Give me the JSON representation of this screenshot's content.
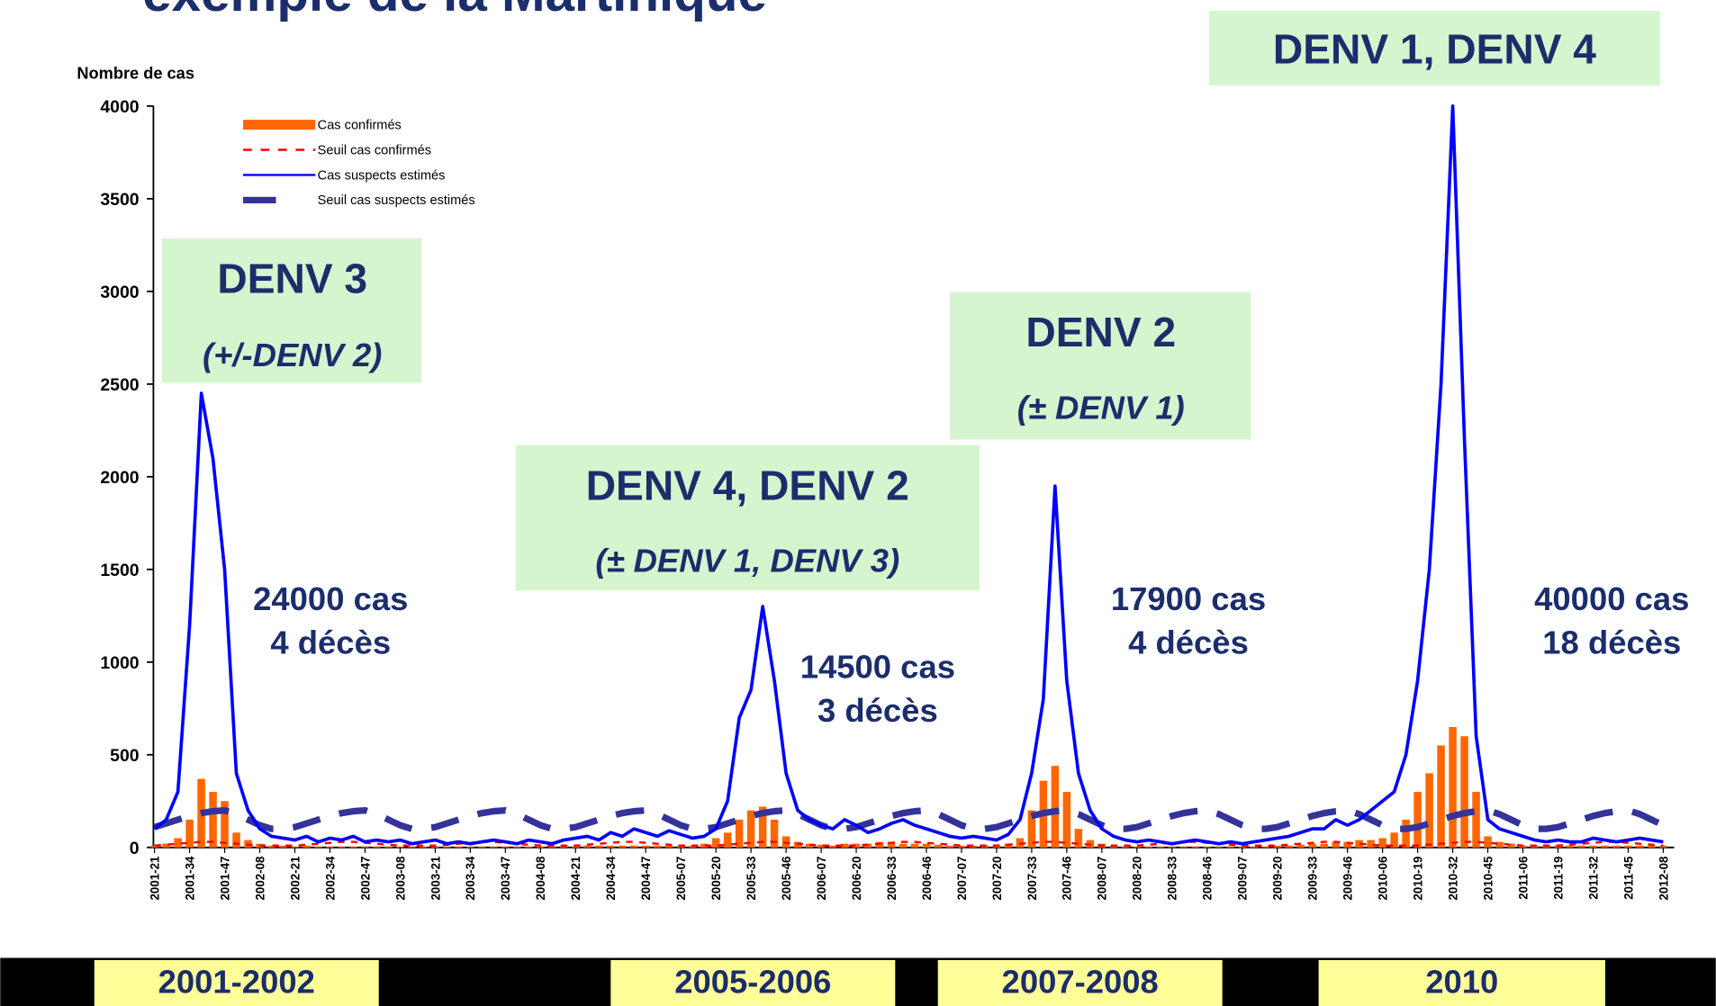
{
  "title": "exemple de la Martinique",
  "periods": [
    "2001-2002",
    "2005-2006",
    "2007-2008",
    "2010"
  ],
  "chart_data": {
    "type": "bar_line",
    "y_label": "Nombre de cas",
    "ylim": [
      0,
      4000
    ],
    "yticks": [
      0,
      500,
      1000,
      1500,
      2000,
      2500,
      3000,
      3500,
      4000
    ],
    "legend": "top-left",
    "categories": [
      "2001-21",
      null,
      null,
      "2001-34",
      null,
      null,
      "2001-47",
      null,
      null,
      "2002-08",
      null,
      null,
      "2002-21",
      null,
      null,
      "2002-34",
      null,
      null,
      "2002-47",
      null,
      null,
      "2003-08",
      null,
      null,
      "2003-21",
      null,
      null,
      "2003-34",
      null,
      null,
      "2003-47",
      null,
      null,
      "2004-08",
      null,
      null,
      "2004-21",
      null,
      null,
      "2004-34",
      null,
      null,
      "2004-47",
      null,
      null,
      "2005-07",
      null,
      null,
      "2005-20",
      null,
      null,
      "2005-33",
      null,
      null,
      "2005-46",
      null,
      null,
      "2006-07",
      null,
      null,
      "2006-20",
      null,
      null,
      "2006-33",
      null,
      null,
      "2006-46",
      null,
      null,
      "2007-07",
      null,
      null,
      "2007-20",
      null,
      null,
      "2007-33",
      null,
      null,
      "2007-46",
      null,
      null,
      "2008-07",
      null,
      null,
      "2008-20",
      null,
      null,
      "2008-33",
      null,
      null,
      "2008-46",
      null,
      null,
      "2009-07",
      null,
      null,
      "2009-20",
      null,
      null,
      "2009-33",
      null,
      null,
      "2009-46",
      null,
      null,
      "2010-06",
      null,
      null,
      "2010-19",
      null,
      null,
      "2010-32",
      null,
      null,
      "2010-45",
      null,
      null,
      "2011-06",
      null,
      null,
      "2011-19",
      null,
      null,
      "2011-32",
      null,
      null,
      "2011-45",
      null,
      null,
      "2012-08"
    ],
    "series": [
      {
        "name": "Cas confirmés",
        "kind": "bar",
        "color": "#ff6600",
        "values": [
          10,
          20,
          50,
          150,
          370,
          300,
          250,
          80,
          40,
          20,
          10,
          10,
          5,
          10,
          5,
          5,
          5,
          5,
          5,
          5,
          5,
          5,
          5,
          5,
          5,
          5,
          5,
          5,
          5,
          5,
          5,
          5,
          5,
          5,
          5,
          5,
          5,
          10,
          10,
          10,
          10,
          10,
          10,
          10,
          10,
          10,
          10,
          20,
          50,
          80,
          150,
          200,
          220,
          150,
          60,
          30,
          20,
          15,
          10,
          20,
          20,
          20,
          30,
          30,
          20,
          20,
          20,
          15,
          10,
          10,
          10,
          10,
          10,
          20,
          50,
          200,
          360,
          440,
          300,
          100,
          40,
          20,
          10,
          5,
          5,
          5,
          5,
          5,
          5,
          5,
          5,
          5,
          5,
          5,
          5,
          5,
          10,
          10,
          15,
          20,
          20,
          30,
          30,
          40,
          40,
          50,
          80,
          150,
          300,
          400,
          550,
          650,
          600,
          300,
          60,
          30,
          20,
          10,
          10,
          10,
          10,
          10,
          10,
          10,
          10,
          10,
          10,
          10,
          10,
          10
        ]
      },
      {
        "name": "Seuil cas confirmés",
        "kind": "line",
        "dash": true,
        "color": "#ff0000",
        "values": [
          10,
          15,
          20,
          25,
          30,
          30,
          25,
          20,
          15,
          10,
          10,
          10,
          10,
          15,
          20,
          25,
          30,
          30,
          25,
          20,
          15,
          10,
          10,
          10,
          10,
          15,
          20,
          25,
          30,
          30,
          25,
          20,
          15,
          10,
          10,
          10,
          10,
          15,
          20,
          25,
          30,
          30,
          25,
          20,
          15,
          10,
          10,
          10,
          10,
          15,
          20,
          25,
          30,
          30,
          25,
          20,
          15,
          10,
          10,
          10,
          10,
          15,
          20,
          25,
          30,
          30,
          25,
          20,
          15,
          10,
          10,
          10,
          10,
          15,
          20,
          25,
          30,
          30,
          25,
          20,
          15,
          10,
          10,
          10,
          10,
          15,
          20,
          25,
          30,
          30,
          25,
          20,
          15,
          10,
          10,
          10,
          10,
          15,
          20,
          25,
          30,
          30,
          25,
          20,
          15,
          10,
          10,
          10,
          10,
          15,
          20,
          25,
          30,
          30,
          25,
          20,
          15,
          10,
          10,
          10,
          10,
          15,
          20,
          25,
          30,
          30,
          25,
          20,
          15,
          10
        ]
      },
      {
        "name": "Cas suspects estimés",
        "kind": "line",
        "color": "#0000ff",
        "values": [
          100,
          150,
          300,
          1200,
          2450,
          2100,
          1500,
          400,
          200,
          100,
          60,
          50,
          40,
          60,
          30,
          50,
          40,
          60,
          30,
          40,
          30,
          40,
          20,
          30,
          40,
          20,
          30,
          20,
          30,
          40,
          30,
          20,
          40,
          30,
          20,
          40,
          50,
          60,
          40,
          80,
          60,
          100,
          80,
          60,
          90,
          70,
          50,
          60,
          100,
          250,
          700,
          850,
          1300,
          900,
          400,
          200,
          150,
          120,
          100,
          150,
          120,
          80,
          100,
          130,
          150,
          120,
          100,
          80,
          60,
          50,
          60,
          50,
          40,
          70,
          150,
          400,
          800,
          1950,
          900,
          400,
          200,
          100,
          60,
          40,
          30,
          40,
          30,
          20,
          30,
          40,
          30,
          20,
          30,
          20,
          30,
          40,
          50,
          60,
          80,
          100,
          100,
          150,
          120,
          150,
          200,
          250,
          300,
          500,
          900,
          1500,
          2500,
          4000,
          2200,
          600,
          150,
          100,
          80,
          60,
          40,
          30,
          40,
          30,
          30,
          50,
          40,
          30,
          40,
          50,
          40,
          30
        ]
      },
      {
        "name": "Seuil cas suspects estimés",
        "kind": "line",
        "dash": true,
        "thick": true,
        "color": "#333399",
        "values": [
          110,
          130,
          150,
          170,
          185,
          195,
          200,
          180,
          150,
          120,
          100,
          100,
          110,
          130,
          150,
          170,
          185,
          195,
          200,
          180,
          150,
          120,
          100,
          100,
          110,
          130,
          150,
          170,
          185,
          195,
          200,
          180,
          150,
          120,
          100,
          100,
          110,
          130,
          150,
          170,
          185,
          195,
          200,
          180,
          150,
          120,
          100,
          100,
          110,
          130,
          150,
          170,
          185,
          195,
          200,
          180,
          150,
          120,
          100,
          100,
          110,
          130,
          150,
          170,
          185,
          195,
          200,
          180,
          150,
          120,
          100,
          100,
          110,
          130,
          150,
          170,
          185,
          195,
          200,
          180,
          150,
          120,
          100,
          100,
          110,
          130,
          150,
          170,
          185,
          195,
          200,
          180,
          150,
          120,
          100,
          100,
          110,
          130,
          150,
          170,
          185,
          195,
          200,
          180,
          150,
          120,
          100,
          100,
          110,
          130,
          150,
          170,
          185,
          195,
          200,
          180,
          150,
          120,
          100,
          100,
          110,
          130,
          150,
          170,
          185,
          195,
          200,
          180,
          150,
          120
        ]
      }
    ],
    "annotations": [
      {
        "title": "DENV 3",
        "subtitle": "(+/-DENV 2)"
      },
      {
        "title": "DENV 4, DENV 2",
        "subtitle": "(± DENV 1, DENV 3)"
      },
      {
        "title": "DENV 2",
        "subtitle": "(± DENV 1)"
      },
      {
        "title": "DENV 1, DENV 4"
      }
    ],
    "case_notes": [
      {
        "cases": "24000 cas",
        "deaths": "4 décès"
      },
      {
        "cases": "14500 cas",
        "deaths": "3 décès"
      },
      {
        "cases": "17900 cas",
        "deaths": "4 décès"
      },
      {
        "cases": "40000 cas",
        "deaths": "18 décès"
      }
    ]
  }
}
